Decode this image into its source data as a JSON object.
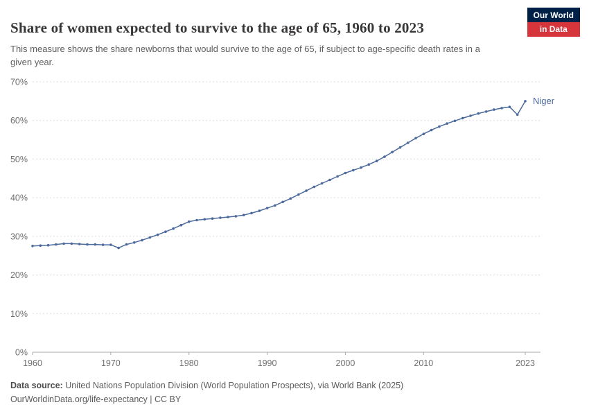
{
  "header": {
    "title": "Share of women expected to survive to the age of 65, 1960 to 2023",
    "subtitle": "This measure shows the share newborns that would survive to the age of 65, if subject to age-specific death rates in a given year."
  },
  "logo": {
    "line1": "Our World",
    "line2": "in Data",
    "navy": "#002147",
    "red": "#D7353C"
  },
  "chart_data": {
    "type": "line",
    "title": "Share of women expected to survive to the age of 65, 1960 to 2023",
    "xlabel": "",
    "ylabel": "",
    "ylim": [
      0,
      70
    ],
    "yticks": [
      0,
      10,
      20,
      30,
      40,
      50,
      60,
      70
    ],
    "ytick_suffix": "%",
    "xticks": [
      1960,
      1970,
      1980,
      1990,
      2000,
      2010,
      2023
    ],
    "grid": true,
    "legend_position": "end-of-line",
    "x": [
      1960,
      1961,
      1962,
      1963,
      1964,
      1965,
      1966,
      1967,
      1968,
      1969,
      1970,
      1971,
      1972,
      1973,
      1974,
      1975,
      1976,
      1977,
      1978,
      1979,
      1980,
      1981,
      1982,
      1983,
      1984,
      1985,
      1986,
      1987,
      1988,
      1989,
      1990,
      1991,
      1992,
      1993,
      1994,
      1995,
      1996,
      1997,
      1998,
      1999,
      2000,
      2001,
      2002,
      2003,
      2004,
      2005,
      2006,
      2007,
      2008,
      2009,
      2010,
      2011,
      2012,
      2013,
      2014,
      2015,
      2016,
      2017,
      2018,
      2019,
      2020,
      2021,
      2022,
      2023
    ],
    "series": [
      {
        "name": "Niger",
        "color": "#4C6A9C",
        "values": [
          27.5,
          27.6,
          27.7,
          27.9,
          28.1,
          28.1,
          28.0,
          27.9,
          27.9,
          27.8,
          27.8,
          27.0,
          27.9,
          28.4,
          29.0,
          29.7,
          30.4,
          31.2,
          32.0,
          32.9,
          33.8,
          34.2,
          34.4,
          34.6,
          34.8,
          35.0,
          35.2,
          35.5,
          36.0,
          36.6,
          37.3,
          38.0,
          38.9,
          39.8,
          40.8,
          41.8,
          42.8,
          43.7,
          44.6,
          45.5,
          46.4,
          47.1,
          47.8,
          48.6,
          49.5,
          50.6,
          51.8,
          53.0,
          54.2,
          55.4,
          56.5,
          57.5,
          58.4,
          59.2,
          59.9,
          60.6,
          61.2,
          61.8,
          62.3,
          62.8,
          63.2,
          63.5,
          61.5,
          65.0
        ]
      }
    ]
  },
  "footer": {
    "source_label": "Data source:",
    "source_text": " United Nations Population Division (World Population Prospects), via World Bank (2025)",
    "note": "OurWorldinData.org/life-expectancy | CC BY"
  }
}
